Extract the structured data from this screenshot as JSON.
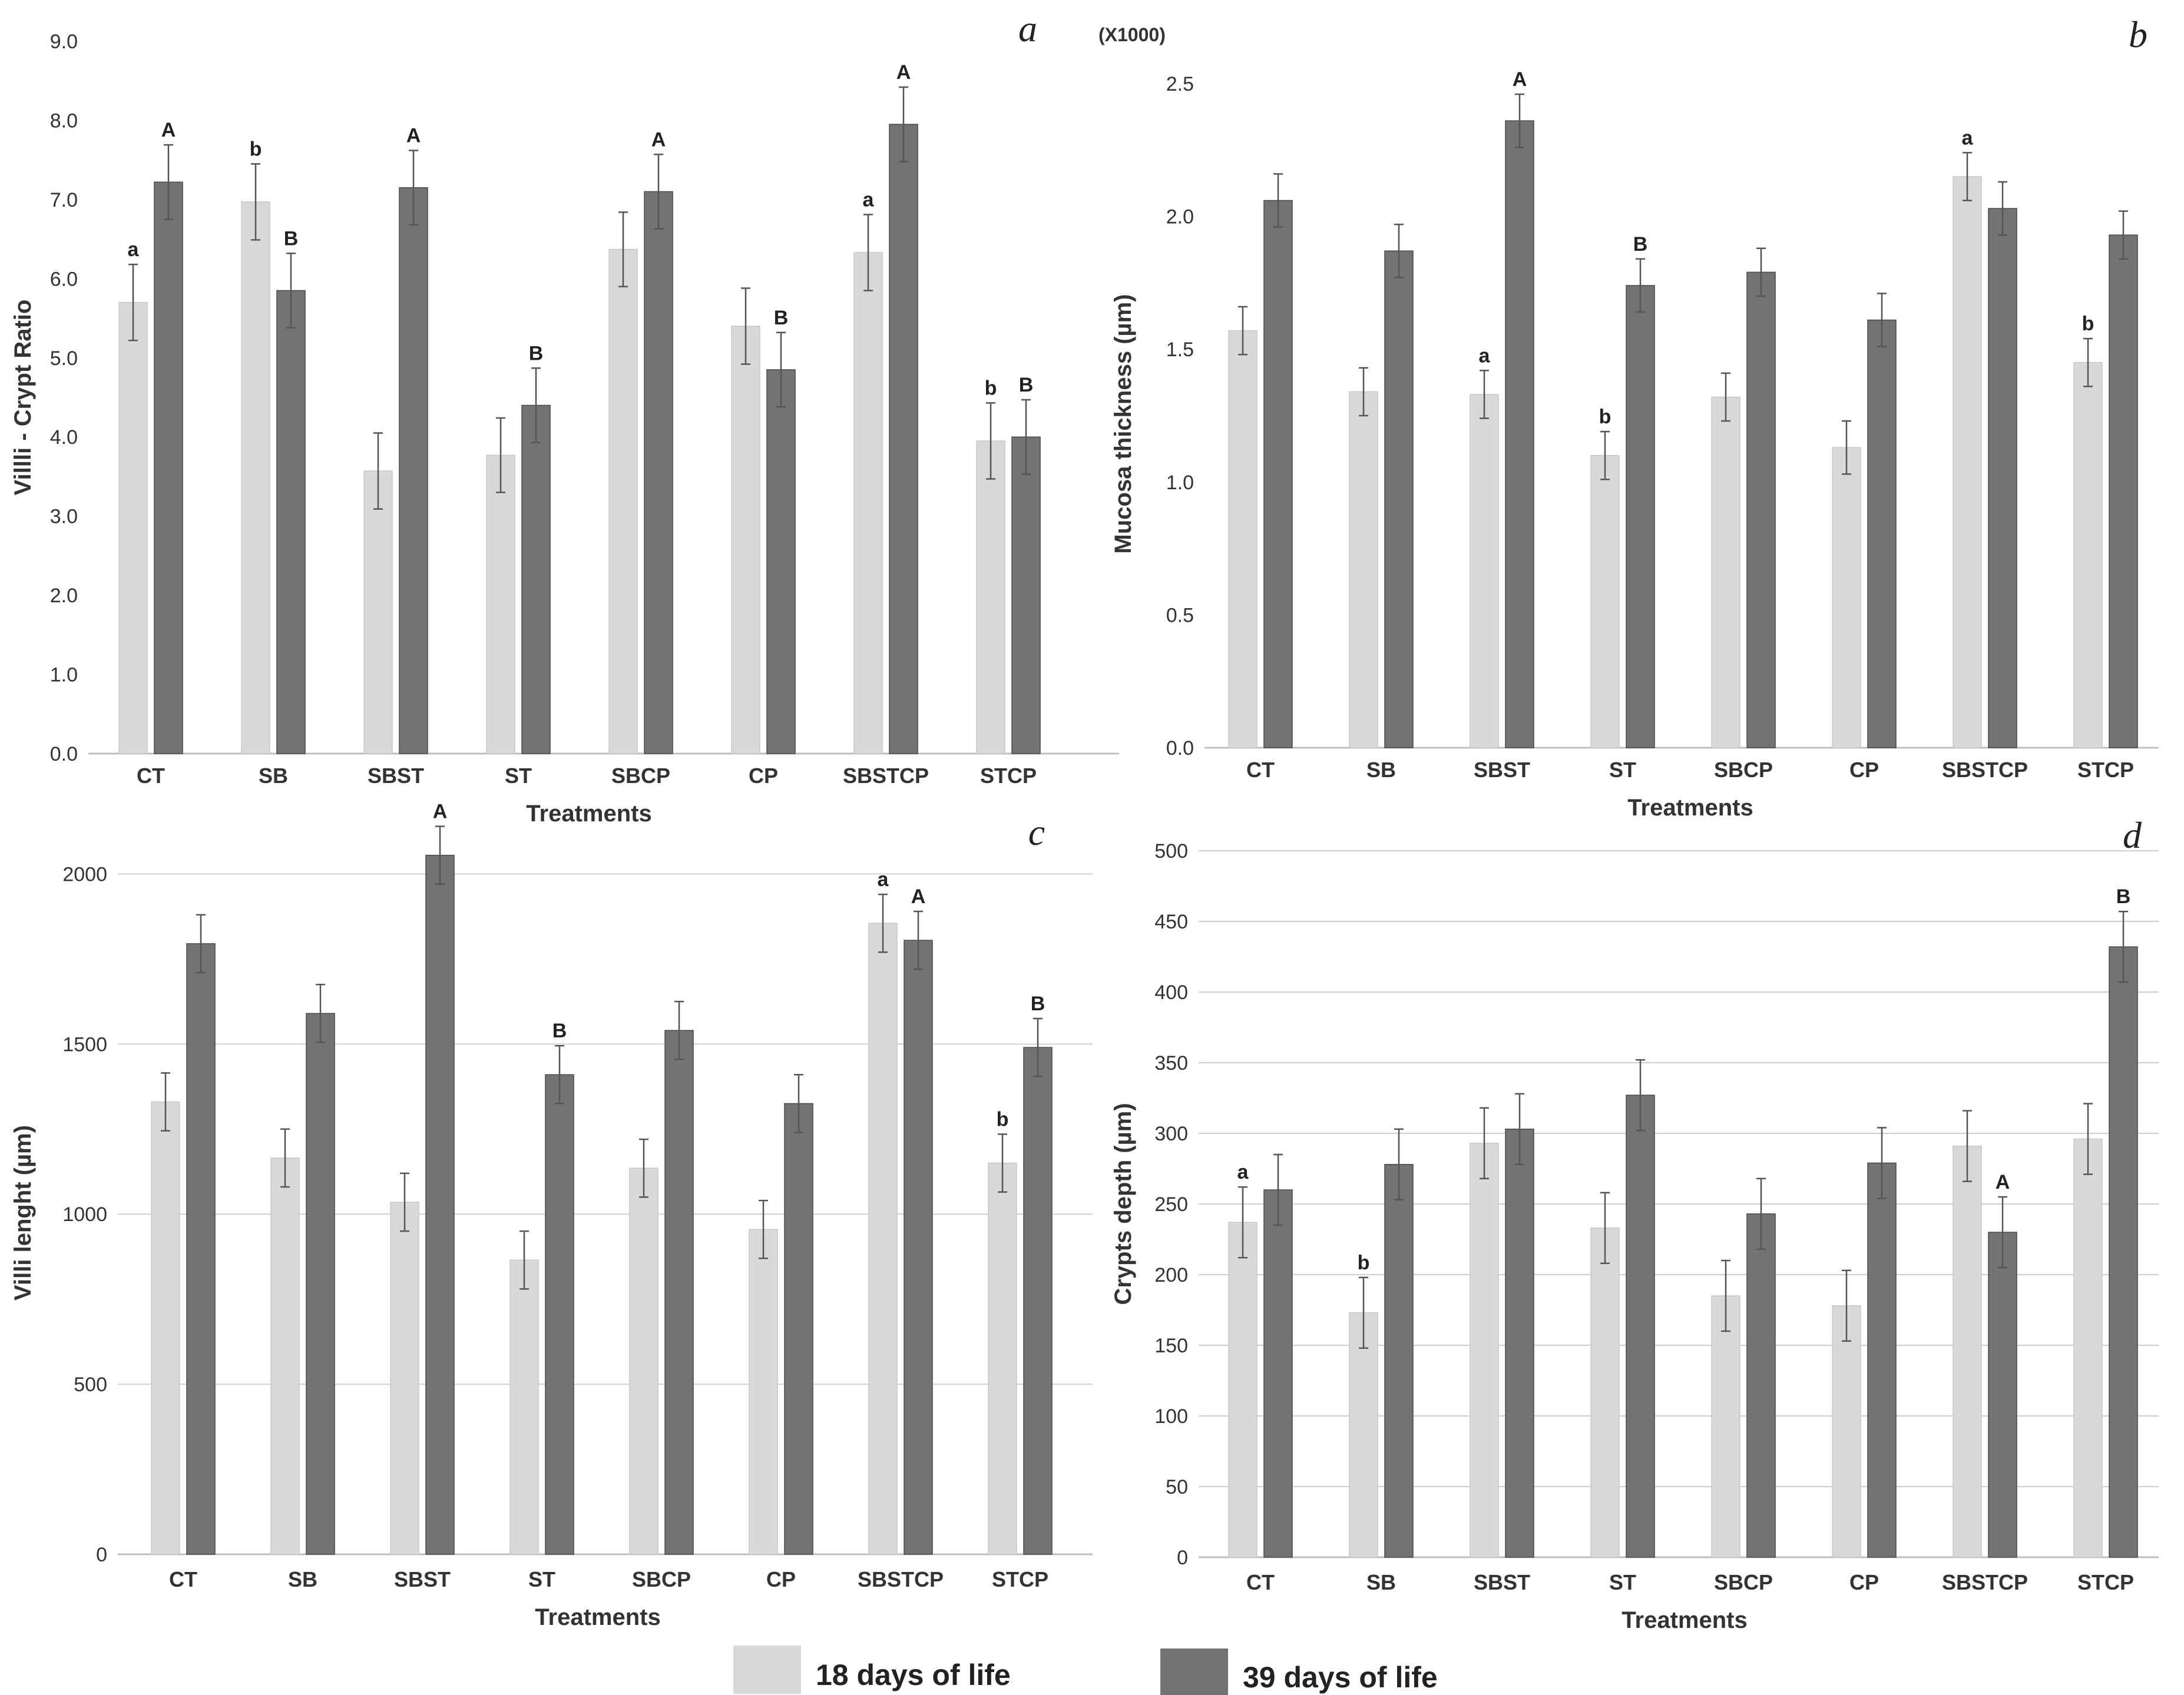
{
  "legend": {
    "items": [
      {
        "label": "18 days  of life",
        "color": "#d9d9d9"
      },
      {
        "label": "39 days  of life",
        "color": "#737373"
      }
    ]
  },
  "chart_data": [
    {
      "panel": "a",
      "type": "bar",
      "categories": [
        "CT",
        "SB",
        "SBST",
        "ST",
        "SBCP",
        "CP",
        "SBSTCP",
        "STCP"
      ],
      "series": [
        {
          "name": "18 days  of life",
          "values": [
            5.7,
            6.97,
            3.57,
            3.77,
            6.37,
            5.4,
            6.33,
            3.95
          ],
          "errors": [
            0.48,
            0.48,
            0.48,
            0.47,
            0.47,
            0.48,
            0.48,
            0.48
          ],
          "labels": [
            "a",
            "b",
            "",
            "",
            "",
            "",
            "a",
            "b"
          ]
        },
        {
          "name": "39 days  of life",
          "values": [
            7.22,
            5.85,
            7.15,
            4.4,
            7.1,
            4.85,
            7.95,
            4.0
          ],
          "errors": [
            0.47,
            0.47,
            0.47,
            0.47,
            0.47,
            0.47,
            0.47,
            0.47
          ],
          "labels": [
            "A",
            "B",
            "A",
            "B",
            "A",
            "B",
            "A",
            "B"
          ]
        }
      ],
      "ylabel": "Villli - Crypt Ratio",
      "xlabel": "Treatments",
      "ylim": [
        0,
        9
      ],
      "yticks": [
        "0.0",
        "1.0",
        "2.0",
        "3.0",
        "4.0",
        "5.0",
        "6.0",
        "7.0",
        "8.0",
        "9.0"
      ],
      "grid": false,
      "scale_label": ""
    },
    {
      "panel": "b",
      "type": "bar",
      "categories": [
        "CT",
        "SB",
        "SBST",
        "ST",
        "SBCP",
        "CP",
        "SBSTCP",
        "STCP"
      ],
      "series": [
        {
          "name": "18 days  of life",
          "values": [
            1.57,
            1.34,
            1.33,
            1.1,
            1.32,
            1.13,
            2.15,
            1.45
          ],
          "errors": [
            0.09,
            0.09,
            0.09,
            0.09,
            0.09,
            0.1,
            0.09,
            0.09
          ],
          "labels": [
            "",
            "",
            "a",
            "b",
            "",
            "",
            "a",
            "b"
          ]
        },
        {
          "name": "39 days  of life",
          "values": [
            2.06,
            1.87,
            2.36,
            1.74,
            1.79,
            1.61,
            2.03,
            1.93
          ],
          "errors": [
            0.1,
            0.1,
            0.1,
            0.1,
            0.09,
            0.1,
            0.1,
            0.09
          ],
          "labels": [
            "",
            "",
            "A",
            "B",
            "",
            "",
            "",
            ""
          ]
        }
      ],
      "ylabel": "Mucosa thickness (µm)",
      "xlabel": "Treatments",
      "ylim": [
        0,
        2.5
      ],
      "yticks": [
        "0.0",
        "0.5",
        "1.0",
        "1.5",
        "2.0",
        "2.5"
      ],
      "grid": false,
      "scale_label": "(X1000)"
    },
    {
      "panel": "c",
      "type": "bar",
      "categories": [
        "CT",
        "SB",
        "SBST",
        "ST",
        "SBCP",
        "CP",
        "SBSTCP",
        "STCP"
      ],
      "series": [
        {
          "name": "18 days  of life",
          "values": [
            1330,
            1165,
            1035,
            865,
            1135,
            955,
            1855,
            1150
          ],
          "errors": [
            85,
            85,
            85,
            85,
            85,
            85,
            85,
            85
          ],
          "labels": [
            "",
            "",
            "",
            "",
            "",
            "",
            "a",
            "b"
          ]
        },
        {
          "name": "39 days  of life",
          "values": [
            1795,
            1590,
            2055,
            1410,
            1540,
            1325,
            1805,
            1490
          ],
          "errors": [
            85,
            85,
            85,
            85,
            85,
            85,
            85,
            85
          ],
          "labels": [
            "",
            "",
            "A",
            "B",
            "",
            "",
            "A",
            "B"
          ]
        }
      ],
      "ylabel": "Villi lenght (µm)",
      "xlabel": "Treatments",
      "ylim": [
        0,
        2250
      ],
      "yticks": [
        "0",
        "500",
        "1000",
        "1500",
        "2000"
      ],
      "grid": true,
      "scale_label": ""
    },
    {
      "panel": "d",
      "type": "bar",
      "categories": [
        "CT",
        "SB",
        "SBST",
        "ST",
        "SBCP",
        "CP",
        "SBSTCP",
        "STCP"
      ],
      "series": [
        {
          "name": "18 days  of life",
          "values": [
            237,
            173,
            293,
            233,
            185,
            178,
            291,
            296
          ],
          "errors": [
            25,
            25,
            25,
            25,
            25,
            25,
            25,
            25
          ],
          "labels": [
            "a",
            "b",
            "",
            "",
            "",
            "",
            "",
            ""
          ]
        },
        {
          "name": "39 days  of life",
          "values": [
            260,
            278,
            303,
            327,
            243,
            279,
            230,
            432
          ],
          "errors": [
            25,
            25,
            25,
            25,
            25,
            25,
            25,
            25
          ],
          "labels": [
            "",
            "",
            "",
            "",
            "",
            "",
            "A",
            "B"
          ]
        }
      ],
      "ylabel": "Crypts depth (µm)",
      "xlabel": "Treatments",
      "ylim": [
        0,
        500
      ],
      "yticks": [
        "0",
        "50",
        "100",
        "150",
        "200",
        "250",
        "300",
        "350",
        "400",
        "450",
        "500"
      ],
      "grid": true,
      "scale_label": ""
    }
  ]
}
